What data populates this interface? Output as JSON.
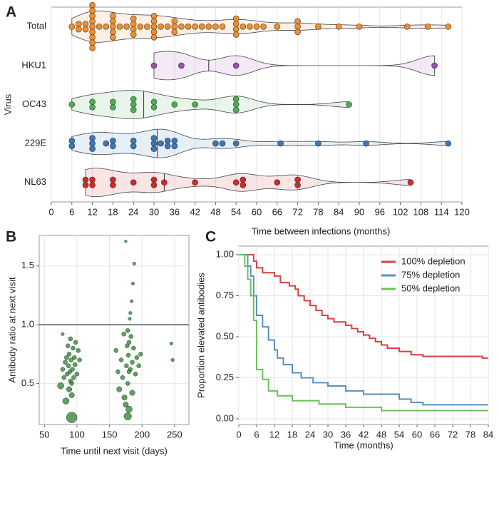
{
  "chart_data": [
    {
      "type": "violin",
      "panel_label": "A",
      "xlabel": "Time between infections (months)",
      "ylabel": "Virus",
      "categories": [
        "Total",
        "HKU1",
        "OC43",
        "229E",
        "NL63"
      ],
      "colors": [
        "#f28e2b",
        "#9b4fb0",
        "#4caf50",
        "#3a78b5",
        "#d62728"
      ],
      "values": [
        [
          6,
          8,
          8,
          10,
          10,
          12,
          12,
          12,
          12,
          12,
          12,
          12,
          12,
          12,
          14,
          16,
          18,
          18,
          18,
          18,
          18,
          20,
          22,
          24,
          24,
          24,
          24,
          26,
          28,
          30,
          30,
          30,
          30,
          30,
          32,
          34,
          36,
          36,
          36,
          38,
          40,
          42,
          44,
          46,
          48,
          50,
          54,
          54,
          54,
          54,
          56,
          58,
          60,
          62,
          66,
          72,
          72,
          72,
          78,
          84,
          90,
          104,
          110,
          116
        ],
        [
          30,
          38,
          54,
          112
        ],
        [
          6,
          12,
          12,
          18,
          18,
          24,
          24,
          24,
          30,
          30,
          36,
          42,
          54,
          54,
          54,
          87
        ],
        [
          6,
          6,
          12,
          12,
          12,
          16,
          18,
          18,
          24,
          24,
          30,
          30,
          30,
          32,
          34,
          34,
          36,
          36,
          48,
          50,
          54,
          67,
          78,
          92,
          116
        ],
        [
          10,
          10,
          12,
          12,
          18,
          18,
          24,
          30,
          30,
          33,
          42,
          54,
          56,
          56,
          66,
          72,
          72,
          105
        ]
      ],
      "medians": [
        30,
        46,
        27,
        31,
        33
      ],
      "xlim": [
        0,
        120
      ],
      "xticks": [
        0,
        6,
        12,
        18,
        24,
        30,
        36,
        42,
        48,
        54,
        60,
        66,
        72,
        78,
        84,
        90,
        96,
        102,
        108,
        114,
        120
      ],
      "grid": true
    },
    {
      "type": "scatter",
      "panel_label": "B",
      "xlabel": "Time until next visit (days)",
      "ylabel": "Antibody ratio at next visit",
      "color": "#2e7d32",
      "hline": {
        "value": 1,
        "label": "1.0"
      },
      "x": [
        75,
        78,
        80,
        82,
        84,
        85,
        86,
        87,
        88,
        88,
        89,
        90,
        90,
        91,
        92,
        92,
        93,
        94,
        95,
        96,
        97,
        98,
        100,
        102,
        104,
        78,
        83,
        92,
        160,
        163,
        165,
        168,
        170,
        172,
        173,
        175,
        176,
        177,
        178,
        178,
        179,
        180,
        181,
        182,
        183,
        184,
        185,
        186,
        187,
        188,
        190,
        192,
        195,
        198,
        175,
        180,
        182,
        185,
        178,
        180,
        245,
        247
      ],
      "values": [
        0.48,
        0.62,
        0.55,
        0.68,
        0.72,
        0.58,
        0.82,
        0.65,
        0.45,
        0.75,
        0.6,
        0.88,
        0.52,
        0.7,
        0.21,
        0.4,
        0.62,
        0.8,
        0.55,
        0.72,
        0.66,
        0.85,
        0.58,
        0.78,
        0.7,
        0.92,
        0.35,
        0.5,
        0.78,
        0.6,
        0.45,
        0.7,
        0.55,
        0.92,
        0.38,
        1.71,
        0.65,
        0.82,
        0.22,
        0.5,
        0.74,
        0.28,
        1.05,
        0.62,
        0.9,
        1.2,
        0.68,
        1.35,
        0.8,
        1.52,
        0.58,
        0.72,
        0.65,
        0.75,
        0.32,
        0.85,
        1.1,
        0.42,
        0.95,
        0.6,
        0.84,
        0.7
      ],
      "sizes": [
        6,
        4,
        4,
        4,
        4,
        4,
        4,
        4,
        5,
        4,
        4,
        4,
        4,
        4,
        10,
        5,
        4,
        4,
        4,
        4,
        4,
        4,
        4,
        4,
        4,
        3,
        6,
        4,
        4,
        4,
        5,
        4,
        4,
        4,
        5,
        2.5,
        4,
        4,
        7,
        4,
        4,
        6,
        3,
        4,
        4,
        3,
        4,
        3,
        4,
        3,
        4,
        4,
        4,
        4,
        5,
        4,
        3,
        5,
        4,
        4,
        3,
        3
      ],
      "xlim": [
        42,
        272
      ],
      "xticks": [
        50,
        100,
        150,
        200,
        250
      ],
      "ylim": [
        0.15,
        1.76
      ],
      "yticks": [
        0.5,
        {
          "value": 1,
          "label": "1.0"
        },
        1.5
      ],
      "grid": true
    },
    {
      "type": "step",
      "panel_label": "C",
      "xlabel": "Time (months)",
      "ylabel": "Proportion elevated antibodies",
      "legend": "upper right",
      "series": [
        {
          "name": "100% depletion",
          "color": "#d94040",
          "x": [
            0,
            5,
            6,
            8,
            12,
            14,
            17,
            19,
            20,
            22,
            24,
            26,
            28,
            30,
            32,
            36,
            38,
            40,
            42,
            44,
            46,
            48,
            50,
            54,
            58,
            62,
            82,
            84
          ],
          "values": [
            1,
            0.96,
            0.92,
            0.89,
            0.87,
            0.83,
            0.81,
            0.79,
            0.75,
            0.72,
            0.69,
            0.66,
            0.63,
            0.61,
            0.59,
            0.57,
            0.55,
            0.53,
            0.51,
            0.49,
            0.47,
            0.45,
            0.43,
            0.41,
            0.39,
            0.38,
            0.37,
            0.37
          ]
        },
        {
          "name": "75% depletion",
          "color": "#5a8fc0",
          "x": [
            0,
            3,
            4,
            5,
            6,
            8,
            10,
            12,
            13,
            15,
            18,
            21,
            25,
            30,
            36,
            42,
            54,
            58,
            62,
            84
          ],
          "values": [
            1,
            0.93,
            0.87,
            0.75,
            0.63,
            0.56,
            0.48,
            0.42,
            0.37,
            0.33,
            0.28,
            0.25,
            0.22,
            0.2,
            0.17,
            0.15,
            0.12,
            0.1,
            0.085,
            0.085
          ]
        },
        {
          "name": "50% depletion",
          "color": "#6cc05a",
          "x": [
            0,
            2,
            3,
            4,
            5,
            6,
            8,
            10,
            13,
            18,
            27,
            36,
            48,
            84
          ],
          "values": [
            1,
            0.93,
            0.85,
            0.75,
            0.6,
            0.3,
            0.24,
            0.17,
            0.14,
            0.11,
            0.09,
            0.07,
            0.05,
            0.05
          ]
        }
      ],
      "xlim": [
        0,
        84
      ],
      "xticks": [
        0,
        6,
        12,
        18,
        24,
        30,
        36,
        42,
        48,
        54,
        60,
        66,
        72,
        78,
        84
      ],
      "ylim": [
        -0.035,
        1.052
      ],
      "yticks": [
        {
          "value": 0,
          "label": "0.00"
        },
        0.25,
        {
          "value": 0.5,
          "label": "0.50"
        },
        0.75,
        {
          "value": 1,
          "label": "1.00"
        }
      ],
      "grid": true
    }
  ]
}
